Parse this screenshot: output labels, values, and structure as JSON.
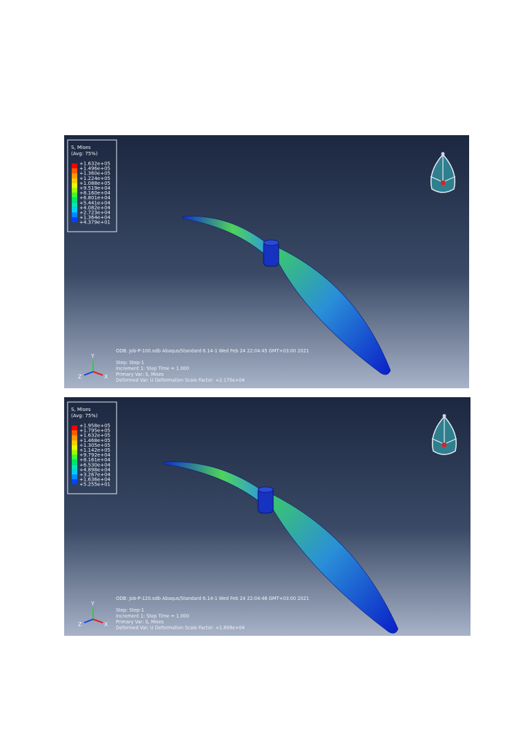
{
  "panels": [
    {
      "legend": {
        "title": "S, Mises",
        "subtitle": "(Avg: 75%)",
        "values": [
          "+1.632e+05",
          "+1.496e+05",
          "+1.360e+05",
          "+1.224e+05",
          "+1.088e+05",
          "+9.519e+04",
          "+8.160e+04",
          "+6.801e+04",
          "+5.441e+04",
          "+4.082e+04",
          "+2.723e+04",
          "+1.364e+04",
          "+4.379e+01"
        ]
      },
      "info": [
        "ODB: Job-P-100.odb    Abaqus/Standard 6.14-1    Wed Feb 24 22:04:45 GMT+03:00 2021",
        "Step: Step-1",
        "Increment      1: Step Time =    1.000",
        "Primary Var: S, Mises",
        "Deformed Var: U   Deformation Scale Factor: +2.170e+04"
      ],
      "triad": {
        "y": "Y",
        "x": "X",
        "z": "Z"
      }
    },
    {
      "legend": {
        "title": "S, Mises",
        "subtitle": "(Avg: 75%)",
        "values": [
          "+1.958e+05",
          "+1.795e+05",
          "+1.632e+05",
          "+1.468e+05",
          "+1.305e+05",
          "+1.142e+05",
          "+9.792e+04",
          "+8.161e+04",
          "+6.530e+04",
          "+4.898e+04",
          "+3.267e+04",
          "+1.636e+04",
          "+5.255e+01"
        ]
      },
      "info": [
        "ODB: Job-P-120.odb    Abaqus/Standard 6.14-1    Wed Feb 24 22:04:46 GMT+03:00 2021",
        "Step: Step-1",
        "Increment      1: Step Time =    1.000",
        "Primary Var: S, Mises",
        "Deformed Var: U   Deformation Scale Factor: +1.809e+04"
      ],
      "triad": {
        "y": "Y",
        "x": "X",
        "z": "Z"
      }
    }
  ]
}
